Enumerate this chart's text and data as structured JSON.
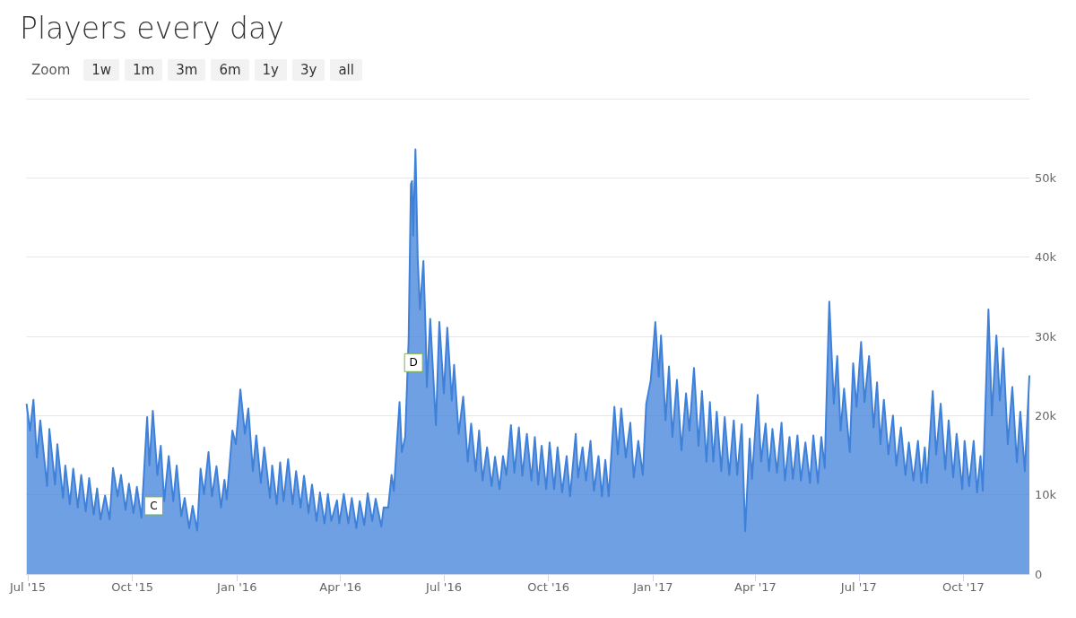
{
  "chart_data": {
    "type": "area",
    "title": "Players every day",
    "annotations": [
      "Zoom",
      "1w",
      "1m",
      "3m",
      "6m",
      "1y",
      "3y",
      "all",
      {
        "text": "C",
        "x": "2015-10-12",
        "y": 11100
      },
      {
        "text": "D",
        "x": "2016-05-29",
        "y": 25100
      }
    ],
    "xlim": [
      "2015-06-30",
      "2017-11-28"
    ],
    "xticks": [
      {
        "value": "2015-07-01",
        "label": "Jul '15"
      },
      {
        "value": "2015-10-01",
        "label": "Oct '15"
      },
      {
        "value": "2016-01-01",
        "label": "Jan '16"
      },
      {
        "value": "2016-04-01",
        "label": "Apr '16"
      },
      {
        "value": "2016-07-01",
        "label": "Jul '16"
      },
      {
        "value": "2016-10-01",
        "label": "Oct '16"
      },
      {
        "value": "2017-01-01",
        "label": "Jan '17"
      },
      {
        "value": "2017-04-01",
        "label": "Apr '17"
      },
      {
        "value": "2017-07-01",
        "label": "Jul '17"
      },
      {
        "value": "2017-10-01",
        "label": "Oct '17"
      }
    ],
    "ylim": [
      0,
      60000
    ],
    "yticks": [
      0,
      {
        "value": 10000,
        "label": "10k"
      },
      {
        "value": 20000,
        "label": "20k"
      },
      {
        "value": 30000,
        "label": "30k"
      },
      {
        "value": 40000,
        "label": "40k"
      },
      {
        "value": 50000,
        "label": "50k"
      },
      {
        "value": 60000,
        "label": null
      }
    ],
    "grid": "y",
    "marker": "none",
    "line_style": "solid",
    "series": [
      {
        "color": "#3f80d9",
        "x": [
          "2015-06-30",
          "2015-07-03",
          "2015-07-06",
          "2015-07-09",
          "2015-07-12",
          "2015-07-18",
          "2015-07-20",
          "2015-07-25",
          "2015-07-27",
          "2015-08-01",
          "2015-08-03",
          "2015-08-07",
          "2015-08-10",
          "2015-08-14",
          "2015-08-17",
          "2015-08-21",
          "2015-08-24",
          "2015-08-28",
          "2015-08-31",
          "2015-09-03",
          "2015-09-07",
          "2015-09-11",
          "2015-09-14",
          "2015-09-18",
          "2015-09-21",
          "2015-09-25",
          "2015-09-28",
          "2015-10-02",
          "2015-10-05",
          "2015-10-09",
          "2015-10-14",
          "2015-10-16",
          "2015-10-19",
          "2015-10-23",
          "2015-10-26",
          "2015-10-29",
          "2015-11-02",
          "2015-11-06",
          "2015-11-09",
          "2015-11-13",
          "2015-11-16",
          "2015-11-20",
          "2015-11-23",
          "2015-11-27",
          "2015-11-30",
          "2015-12-03",
          "2015-12-07",
          "2015-12-10",
          "2015-12-14",
          "2015-12-18",
          "2015-12-21",
          "2015-12-23",
          "2015-12-28",
          "2015-12-31",
          "2016-01-04",
          "2016-01-08",
          "2016-01-11",
          "2016-01-15",
          "2016-01-18",
          "2016-01-22",
          "2016-01-25",
          "2016-01-30",
          "2016-02-01",
          "2016-02-05",
          "2016-02-08",
          "2016-02-11",
          "2016-02-15",
          "2016-02-19",
          "2016-02-22",
          "2016-02-26",
          "2016-02-29",
          "2016-03-04",
          "2016-03-07",
          "2016-03-11",
          "2016-03-14",
          "2016-03-18",
          "2016-03-21",
          "2016-03-24",
          "2016-03-29",
          "2016-03-31",
          "2016-04-04",
          "2016-04-08",
          "2016-04-11",
          "2016-04-15",
          "2016-04-18",
          "2016-04-22",
          "2016-04-25",
          "2016-04-29",
          "2016-05-02",
          "2016-05-07",
          "2016-05-09",
          "2016-05-13",
          "2016-05-16",
          "2016-05-18",
          "2016-05-23",
          "2016-05-25",
          "2016-05-28",
          "2016-05-31",
          "2016-06-02",
          "2016-06-03",
          "2016-06-04",
          "2016-06-06",
          "2016-06-08",
          "2016-06-10",
          "2016-06-13",
          "2016-06-15",
          "2016-06-16",
          "2016-06-19",
          "2016-06-24",
          "2016-06-27",
          "2016-07-01",
          "2016-07-04",
          "2016-07-08",
          "2016-07-10",
          "2016-07-14",
          "2016-07-18",
          "2016-07-22",
          "2016-07-25",
          "2016-07-29",
          "2016-08-01",
          "2016-08-04",
          "2016-08-08",
          "2016-08-12",
          "2016-08-15",
          "2016-08-19",
          "2016-08-22",
          "2016-08-25",
          "2016-08-29",
          "2016-09-01",
          "2016-09-05",
          "2016-09-08",
          "2016-09-12",
          "2016-09-16",
          "2016-09-19",
          "2016-09-22",
          "2016-09-25",
          "2016-09-29",
          "2016-10-02",
          "2016-10-06",
          "2016-10-09",
          "2016-10-13",
          "2016-10-17",
          "2016-10-20",
          "2016-10-25",
          "2016-10-27",
          "2016-10-31",
          "2016-11-03",
          "2016-11-07",
          "2016-11-10",
          "2016-11-14",
          "2016-11-17",
          "2016-11-20",
          "2016-11-23",
          "2016-11-28",
          "2016-12-01",
          "2016-12-04",
          "2016-12-08",
          "2016-12-12",
          "2016-12-15",
          "2016-12-19",
          "2016-12-23",
          "2016-12-26",
          "2016-12-30",
          "2017-01-03",
          "2017-01-06",
          "2017-01-08",
          "2017-01-12",
          "2017-01-15",
          "2017-01-18",
          "2017-01-22",
          "2017-01-26",
          "2017-01-30",
          "2017-02-02",
          "2017-02-06",
          "2017-02-10",
          "2017-02-13",
          "2017-02-17",
          "2017-02-20",
          "2017-02-23",
          "2017-02-26",
          "2017-03-02",
          "2017-03-05",
          "2017-03-09",
          "2017-03-13",
          "2017-03-16",
          "2017-03-20",
          "2017-03-23",
          "2017-03-27",
          "2017-03-29",
          "2017-04-03",
          "2017-04-06",
          "2017-04-10",
          "2017-04-13",
          "2017-04-16",
          "2017-04-20",
          "2017-04-24",
          "2017-04-27",
          "2017-05-01",
          "2017-05-04",
          "2017-05-08",
          "2017-05-11",
          "2017-05-15",
          "2017-05-19",
          "2017-05-22",
          "2017-05-26",
          "2017-05-29",
          "2017-06-01",
          "2017-06-02",
          "2017-06-05",
          "2017-06-09",
          "2017-06-12",
          "2017-06-15",
          "2017-06-18",
          "2017-06-23",
          "2017-06-26",
          "2017-06-29",
          "2017-07-03",
          "2017-07-06",
          "2017-07-10",
          "2017-07-14",
          "2017-07-17",
          "2017-07-20",
          "2017-07-23",
          "2017-07-27",
          "2017-07-31",
          "2017-08-03",
          "2017-08-07",
          "2017-08-11",
          "2017-08-14",
          "2017-08-18",
          "2017-08-22",
          "2017-08-25",
          "2017-08-28",
          "2017-08-30",
          "2017-09-04",
          "2017-09-07",
          "2017-09-11",
          "2017-09-15",
          "2017-09-18",
          "2017-09-22",
          "2017-09-25",
          "2017-09-30",
          "2017-10-02",
          "2017-10-06",
          "2017-10-10",
          "2017-10-13",
          "2017-10-16",
          "2017-10-18",
          "2017-10-23",
          "2017-10-26",
          "2017-10-30",
          "2017-11-02",
          "2017-11-03",
          "2017-11-05",
          "2017-11-09",
          "2017-11-13",
          "2017-11-17",
          "2017-11-20",
          "2017-11-24",
          "2017-11-28"
        ],
        "values": [
          21400,
          18100,
          22000,
          14700,
          19400,
          11100,
          18300,
          11300,
          16400,
          9600,
          13700,
          8800,
          13300,
          8400,
          12500,
          7900,
          12100,
          7500,
          10800,
          6900,
          9900,
          6900,
          13400,
          9800,
          12500,
          8100,
          11400,
          7700,
          11000,
          7100,
          19800,
          13700,
          20600,
          12500,
          16200,
          9200,
          14900,
          9200,
          13700,
          7300,
          9600,
          5800,
          8600,
          5500,
          13300,
          10100,
          15400,
          9800,
          13600,
          8400,
          11900,
          9400,
          18100,
          16400,
          23300,
          17700,
          20900,
          13000,
          17500,
          11500,
          16000,
          9600,
          13700,
          8800,
          14100,
          9200,
          14500,
          8800,
          13000,
          8400,
          12400,
          7700,
          11300,
          6700,
          10300,
          6400,
          10100,
          6700,
          9300,
          6400,
          10100,
          6400,
          9600,
          5800,
          9200,
          6200,
          10200,
          6700,
          9500,
          6000,
          8400,
          8400,
          12500,
          10500,
          21700,
          15400,
          17300,
          29600,
          49200,
          49600,
          42700,
          53600,
          39800,
          33400,
          39500,
          30400,
          23600,
          32200,
          18800,
          31800,
          22800,
          31100,
          21900,
          26400,
          17700,
          22400,
          14200,
          19000,
          13000,
          18100,
          11800,
          16000,
          11100,
          14800,
          10700,
          14900,
          12500,
          18800,
          12800,
          18500,
          12400,
          17700,
          11800,
          17300,
          11300,
          16200,
          10700,
          16600,
          10700,
          16000,
          10300,
          14900,
          9800,
          17700,
          12200,
          16000,
          11800,
          16800,
          10500,
          14900,
          9800,
          14400,
          9800,
          21100,
          15100,
          20900,
          14700,
          19100,
          12200,
          16800,
          12500,
          21500,
          24500,
          31800,
          24900,
          30100,
          19400,
          26200,
          17300,
          24500,
          15600,
          22800,
          18100,
          26000,
          16200,
          23100,
          14200,
          21700,
          14200,
          20500,
          13000,
          19800,
          12500,
          19400,
          12500,
          18900,
          5400,
          17100,
          12000,
          22600,
          14200,
          19000,
          13000,
          18300,
          12800,
          19100,
          11800,
          17300,
          12000,
          17500,
          11800,
          16600,
          11500,
          17500,
          11500,
          17300,
          13400,
          19000,
          34400,
          21500,
          27500,
          18100,
          23400,
          15400,
          26600,
          21100,
          29300,
          21700,
          27500,
          18500,
          24200,
          16400,
          22000,
          15100,
          20000,
          13700,
          18500,
          12500,
          16600,
          11800,
          16800,
          11500,
          16000,
          11500,
          23100,
          15100,
          21500,
          13200,
          19400,
          12200,
          17700,
          10700,
          16800,
          11100,
          16800,
          10300,
          14900,
          10500,
          33400,
          20000,
          30100,
          21900,
          23600,
          28500,
          16400,
          23600,
          14100,
          20500,
          13000,
          25000
        ]
      }
    ]
  }
}
